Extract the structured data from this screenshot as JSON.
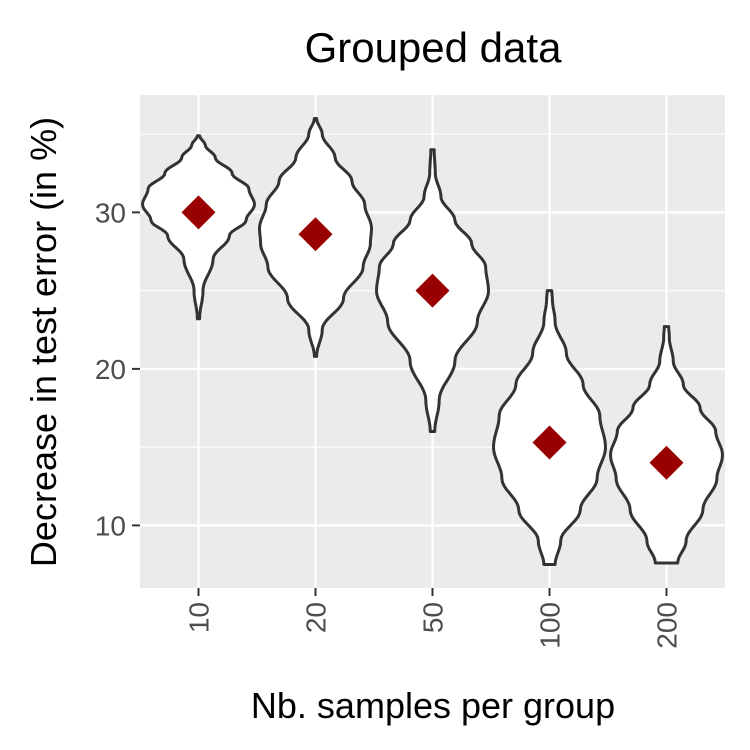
{
  "chart_data": {
    "type": "violin",
    "title": "Grouped data",
    "xlabel": "Nb. samples per group",
    "ylabel": "Decrease in test error (in %)",
    "categories": [
      "10",
      "20",
      "50",
      "100",
      "200"
    ],
    "y_ticks": [
      10,
      20,
      30
    ],
    "ylim": [
      6,
      37.5
    ],
    "grid": true,
    "colors": {
      "panel": "#ebebeb",
      "grid": "#ffffff",
      "violin_fill": "#ffffff",
      "violin_stroke": "#333333",
      "marker": "#990000"
    },
    "series": [
      {
        "category": "10",
        "mean": 30.0,
        "min": 23.2,
        "max": 34.9,
        "profile": [
          [
            23.2,
            0.02
          ],
          [
            25.0,
            0.08
          ],
          [
            27.0,
            0.26
          ],
          [
            28.5,
            0.55
          ],
          [
            29.5,
            0.85
          ],
          [
            30.5,
            1.0
          ],
          [
            31.5,
            0.9
          ],
          [
            32.5,
            0.6
          ],
          [
            33.5,
            0.3
          ],
          [
            34.3,
            0.12
          ],
          [
            34.9,
            0.02
          ]
        ]
      },
      {
        "category": "20",
        "mean": 28.6,
        "min": 20.8,
        "max": 36.0,
        "profile": [
          [
            20.8,
            0.02
          ],
          [
            22.5,
            0.12
          ],
          [
            24.5,
            0.5
          ],
          [
            26.5,
            0.85
          ],
          [
            28.0,
            0.98
          ],
          [
            29.0,
            1.0
          ],
          [
            30.5,
            0.88
          ],
          [
            32.0,
            0.65
          ],
          [
            33.5,
            0.35
          ],
          [
            35.0,
            0.12
          ],
          [
            36.0,
            0.02
          ]
        ]
      },
      {
        "category": "50",
        "mean": 25.0,
        "min": 16.0,
        "max": 34.0,
        "profile": [
          [
            16.0,
            0.04
          ],
          [
            18.0,
            0.12
          ],
          [
            20.5,
            0.4
          ],
          [
            23.0,
            0.8
          ],
          [
            25.0,
            1.0
          ],
          [
            26.5,
            0.95
          ],
          [
            28.0,
            0.7
          ],
          [
            29.5,
            0.4
          ],
          [
            31.0,
            0.15
          ],
          [
            32.5,
            0.05
          ],
          [
            34.0,
            0.03
          ]
        ]
      },
      {
        "category": "100",
        "mean": 15.3,
        "min": 7.5,
        "max": 25.0,
        "profile": [
          [
            7.5,
            0.1
          ],
          [
            9.0,
            0.2
          ],
          [
            11.0,
            0.55
          ],
          [
            13.0,
            0.85
          ],
          [
            15.0,
            1.0
          ],
          [
            17.0,
            0.9
          ],
          [
            19.0,
            0.6
          ],
          [
            21.0,
            0.3
          ],
          [
            23.0,
            0.1
          ],
          [
            24.5,
            0.05
          ],
          [
            25.0,
            0.04
          ]
        ]
      },
      {
        "category": "200",
        "mean": 14.0,
        "min": 7.6,
        "max": 22.7,
        "profile": [
          [
            7.6,
            0.2
          ],
          [
            9.0,
            0.35
          ],
          [
            11.0,
            0.65
          ],
          [
            13.0,
            0.9
          ],
          [
            14.5,
            1.0
          ],
          [
            16.0,
            0.88
          ],
          [
            17.5,
            0.6
          ],
          [
            19.0,
            0.3
          ],
          [
            20.5,
            0.12
          ],
          [
            22.0,
            0.05
          ],
          [
            22.7,
            0.04
          ]
        ]
      }
    ]
  }
}
